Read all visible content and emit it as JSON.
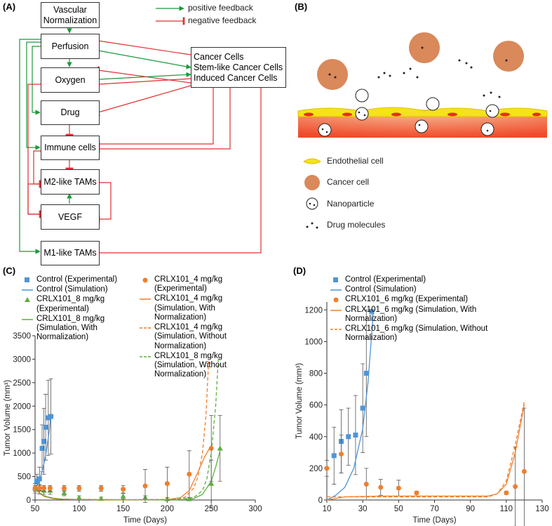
{
  "diagram": {
    "panel_label": "(A)",
    "nodes": [
      {
        "label": "Vascular Normalization"
      },
      {
        "label": "Perfusion"
      },
      {
        "label": "Oxygen"
      },
      {
        "label": "Drug"
      },
      {
        "label": "Immune cells"
      },
      {
        "label": "M2-like TAMs"
      },
      {
        "label": "VEGF"
      },
      {
        "label": "M1-like TAMs"
      }
    ],
    "cancer_box": [
      "Cancer Cells",
      "Stem-like Cancer Cells",
      "Induced Cancer Cells"
    ],
    "legend": [
      "positive feedback",
      "negative feedback"
    ]
  },
  "illustration": {
    "panel_label": "(B)",
    "legend": [
      "Endothelial cell",
      "Cancer cell",
      "Nanoparticle",
      "Drug molecules"
    ]
  },
  "chart_data": [
    {
      "type": "scatter",
      "panel_label": "(C)",
      "x_label": "Time (Days)",
      "y_label": "Tumor Volume (mm³)",
      "xlim": [
        50,
        300
      ],
      "xticks": [
        50,
        100,
        150,
        200,
        250,
        300
      ],
      "ylim": [
        0,
        3500
      ],
      "yticks": [
        0,
        500,
        1000,
        1500,
        2000,
        2500,
        3000,
        3500
      ],
      "series": [
        {
          "name": "Control (Experimental)",
          "kind": "points",
          "marker": "square",
          "color": "#4f95d6",
          "x": [
            52,
            55,
            58,
            60,
            62,
            65,
            68
          ],
          "values": [
            400,
            450,
            1100,
            1250,
            1550,
            1750,
            1780
          ],
          "errors": [
            150,
            250,
            500,
            700,
            700,
            800,
            800
          ]
        },
        {
          "name": "Control (Simulation)",
          "kind": "line",
          "color": "#4f95d6",
          "x": [
            50,
            54,
            58,
            62,
            66,
            68
          ],
          "values": [
            250,
            380,
            600,
            950,
            1450,
            1800
          ]
        },
        {
          "name": "CRLX101_8 mg/kg (Experimental)",
          "kind": "points",
          "marker": "triangle",
          "color": "#5eae3f",
          "x": [
            50,
            55,
            60,
            67,
            83,
            100,
            125,
            150,
            175,
            200,
            225,
            250,
            260
          ],
          "values": [
            250,
            230,
            200,
            200,
            150,
            50,
            30,
            80,
            50,
            20,
            20,
            350,
            1100
          ],
          "errors": [
            100,
            100,
            80,
            80,
            60,
            40,
            30,
            60,
            40,
            30,
            30,
            500,
            700
          ]
        },
        {
          "name": "CRLX101_8 mg/kg (Simulation, With Normalization)",
          "kind": "line",
          "color": "#5eae3f",
          "x": [
            50,
            55,
            60,
            70,
            80,
            100,
            150,
            200,
            220,
            230,
            240,
            250,
            255,
            260
          ],
          "values": [
            250,
            150,
            90,
            40,
            20,
            10,
            5,
            5,
            10,
            30,
            120,
            400,
            700,
            1050
          ]
        },
        {
          "name": "CRLX101_4 mg/kg (Experimental)",
          "kind": "points",
          "marker": "circle",
          "color": "#ee7f2d",
          "x": [
            50,
            55,
            60,
            67,
            83,
            100,
            125,
            150,
            175,
            200,
            225,
            250
          ],
          "values": [
            250,
            250,
            250,
            250,
            250,
            250,
            250,
            230,
            300,
            350,
            550,
            1100
          ],
          "errors": [
            60,
            60,
            60,
            60,
            60,
            60,
            60,
            80,
            350,
            350,
            500,
            700
          ]
        },
        {
          "name": "CRLX101_4 mg/kg (Simulation, With Normalization)",
          "kind": "line",
          "color": "#ee7f2d",
          "x": [
            50,
            55,
            60,
            70,
            80,
            100,
            150,
            200,
            215,
            225,
            235,
            242,
            248
          ],
          "values": [
            250,
            140,
            80,
            30,
            15,
            10,
            5,
            10,
            50,
            200,
            600,
            900,
            1100
          ]
        },
        {
          "name": "CRLX101_4 mg/kg (Simulation, Without Normalization)",
          "kind": "line",
          "dashed": true,
          "color": "#ee7f2d",
          "x": [
            50,
            55,
            60,
            70,
            80,
            100,
            150,
            200,
            220,
            230,
            235,
            240,
            244,
            247
          ],
          "values": [
            250,
            140,
            80,
            30,
            15,
            10,
            5,
            10,
            60,
            250,
            500,
            1000,
            1800,
            2950
          ]
        },
        {
          "name": "CRLX101_8 mg/kg (Simulation, Without Normalization)",
          "kind": "line",
          "dashed": true,
          "color": "#5eae3f",
          "x": [
            50,
            55,
            60,
            70,
            80,
            100,
            150,
            200,
            230,
            240,
            245,
            250,
            255,
            258
          ],
          "values": [
            250,
            150,
            90,
            40,
            20,
            10,
            5,
            5,
            50,
            200,
            450,
            1000,
            2000,
            3000
          ]
        }
      ]
    },
    {
      "type": "scatter",
      "panel_label": "(D)",
      "x_label": "Time (Days)",
      "y_label": "Tumor Volume (mm³)",
      "xlim": [
        10,
        130
      ],
      "xticks": [
        10,
        30,
        50,
        70,
        90,
        110,
        130
      ],
      "ylim": [
        0,
        1250
      ],
      "yticks": [
        0,
        200,
        400,
        600,
        800,
        1000,
        1200
      ],
      "series": [
        {
          "name": "Control (Experimental)",
          "kind": "points",
          "marker": "square",
          "color": "#4f95d6",
          "x": [
            14,
            18,
            22,
            26,
            30,
            32,
            35
          ],
          "values": [
            280,
            370,
            400,
            410,
            580,
            800,
            1190
          ],
          "errors": [
            180,
            200,
            180,
            250,
            280,
            400,
            10
          ]
        },
        {
          "name": "Control (Simulation)",
          "kind": "line",
          "color": "#4f95d6",
          "x": [
            10,
            15,
            20,
            25,
            30,
            33,
            36
          ],
          "values": [
            0,
            30,
            80,
            200,
            450,
            750,
            1200
          ]
        },
        {
          "name": "CRLX101_6 mg/kg (Experimental)",
          "kind": "points",
          "marker": "circle",
          "color": "#ee7f2d",
          "x": [
            10,
            18,
            32,
            40,
            50,
            60,
            110,
            115,
            120
          ],
          "values": [
            200,
            290,
            100,
            80,
            75,
            45,
            45,
            85,
            180
          ],
          "errors": [
            50,
            120,
            100,
            50,
            50,
            10,
            10,
            250,
            400
          ]
        },
        {
          "name": "CRLX101_6 mg/kg (Simulation, With Normalization)",
          "kind": "line",
          "color": "#ee7f2d",
          "x": [
            10,
            20,
            40,
            60,
            80,
            100,
            105,
            110,
            115,
            120
          ],
          "values": [
            0,
            20,
            25,
            25,
            25,
            25,
            40,
            100,
            300,
            600
          ]
        },
        {
          "name": "CRLX101_6 mg/kg (Simulation, Without Normalization)",
          "kind": "line",
          "dashed": true,
          "color": "#ee7f2d",
          "x": [
            10,
            100,
            105,
            110,
            115,
            120
          ],
          "values": [
            20,
            20,
            40,
            120,
            350,
            620
          ]
        }
      ]
    }
  ]
}
